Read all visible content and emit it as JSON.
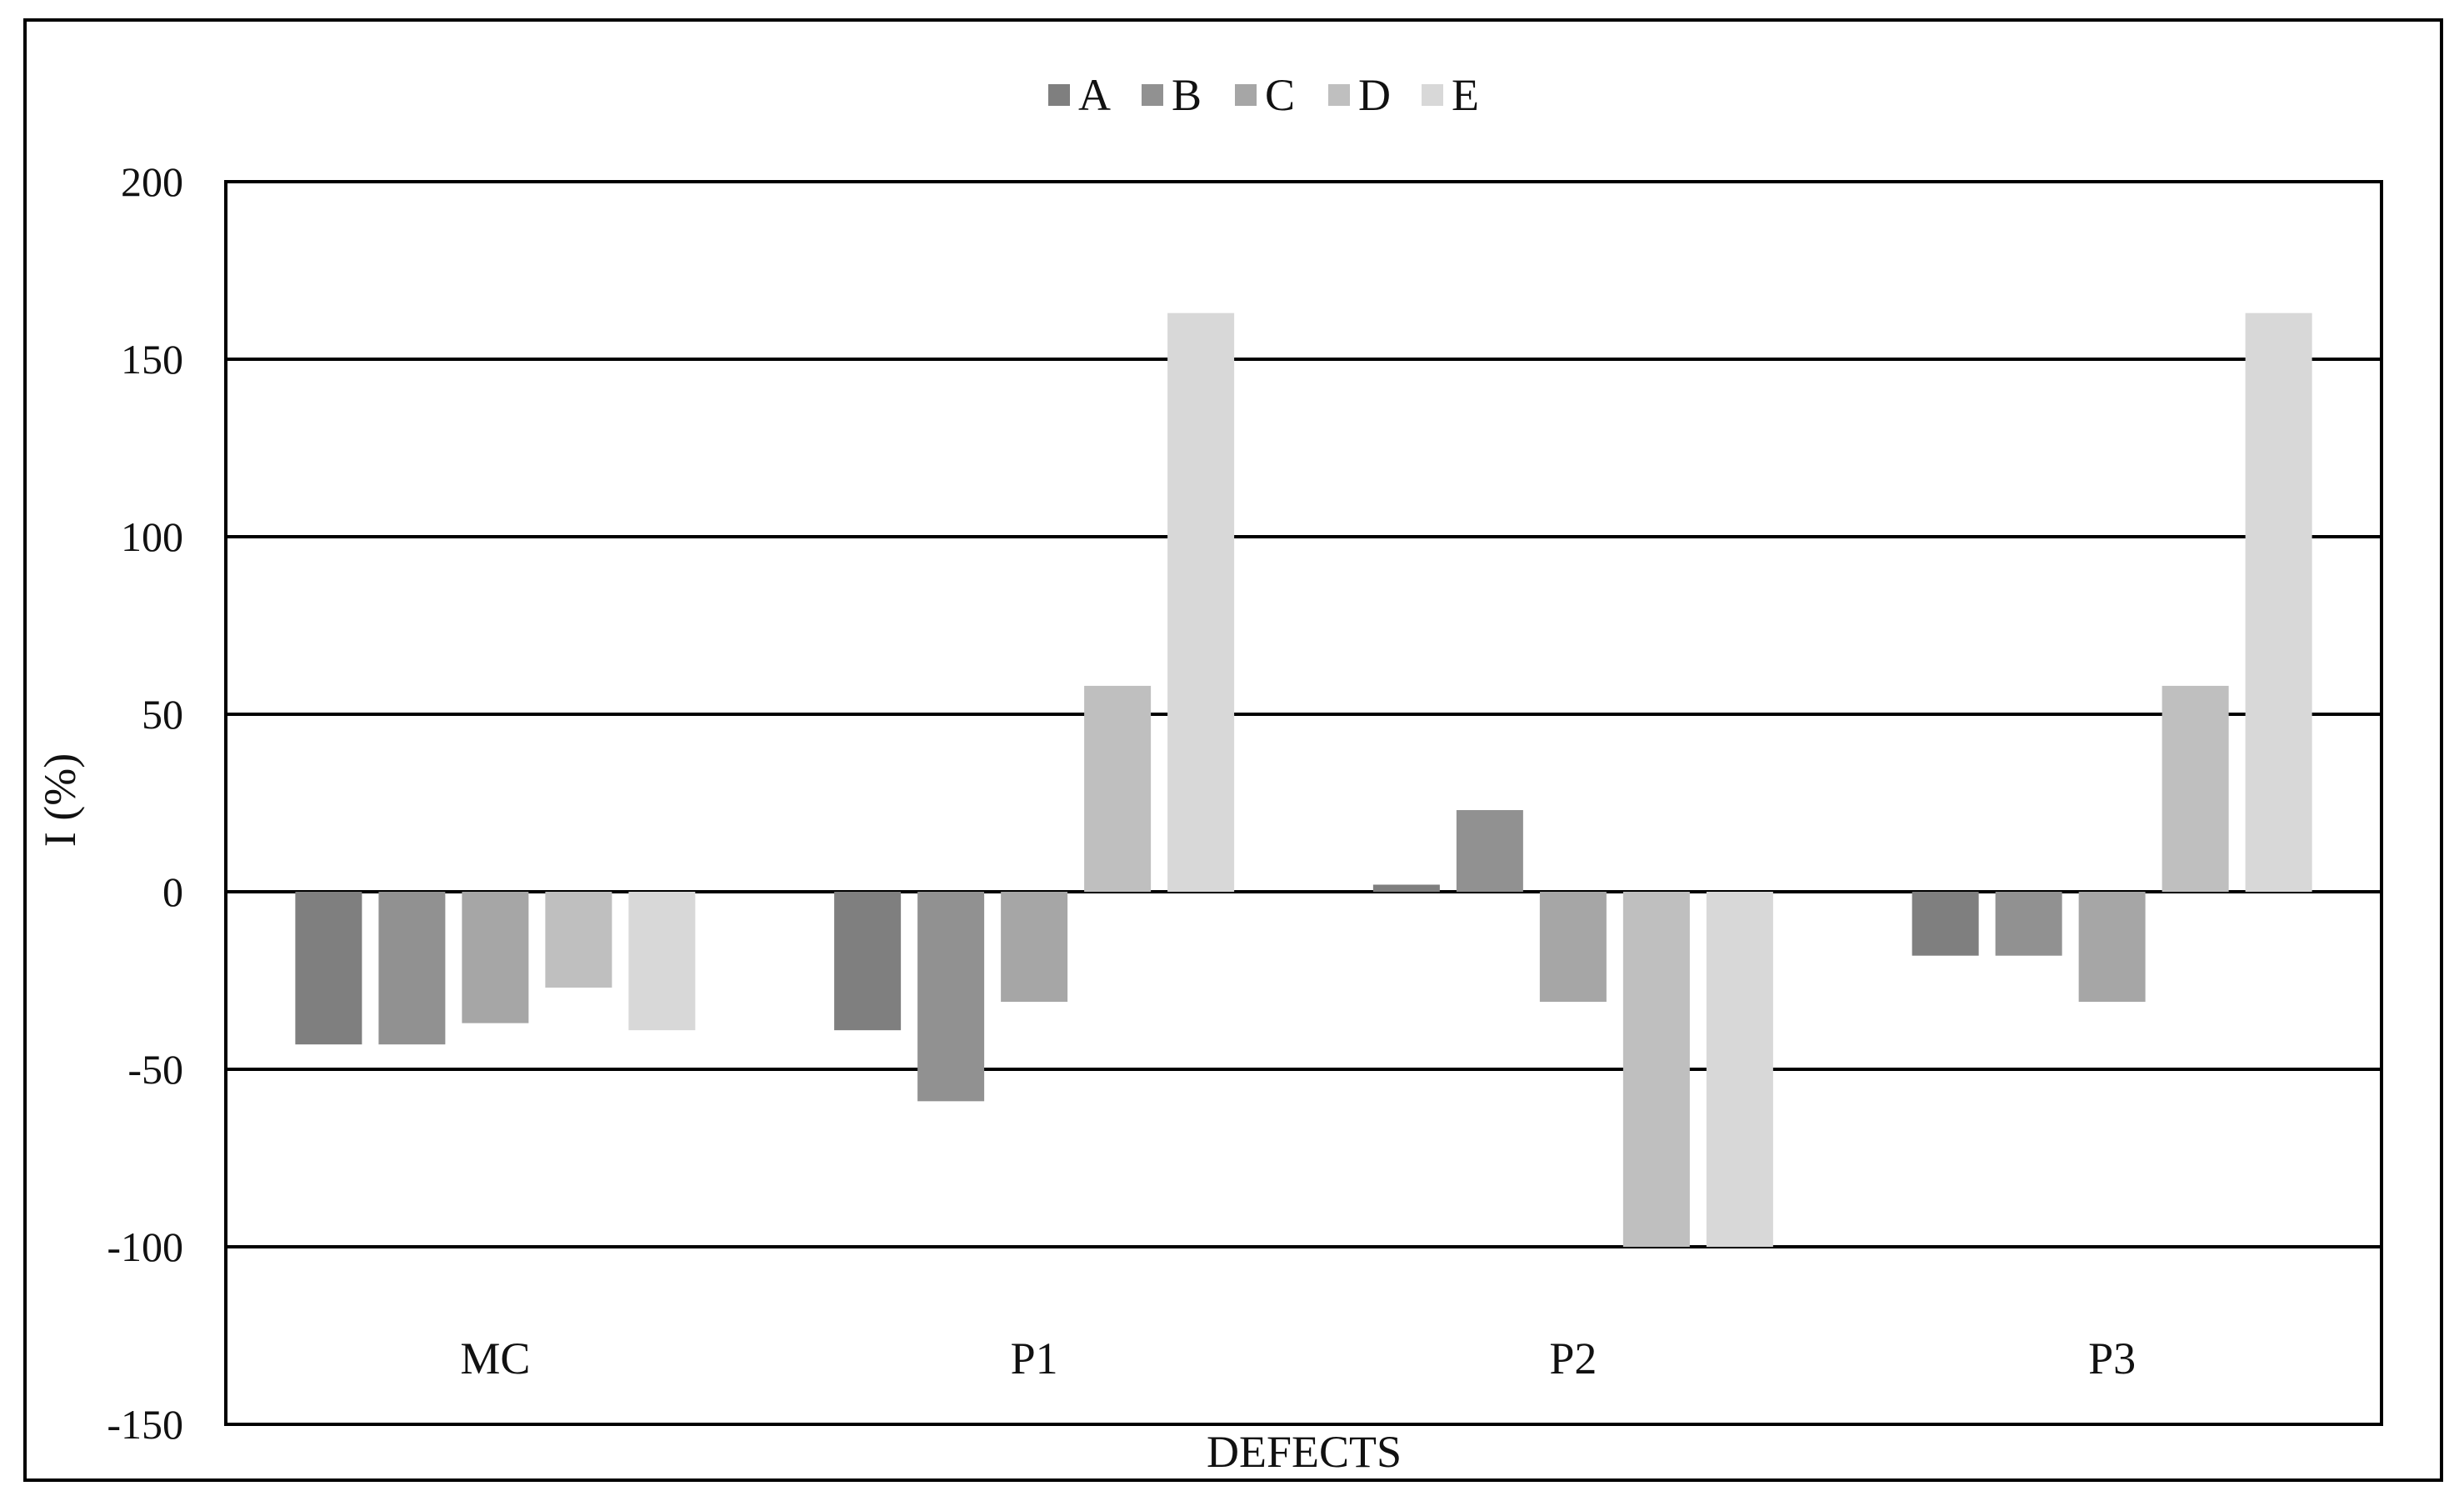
{
  "chart_data": {
    "type": "bar",
    "title": "",
    "xlabel": "DEFECTS",
    "ylabel": "I (%)",
    "ylim": [
      -150,
      200
    ],
    "yticks": [
      200,
      150,
      100,
      50,
      0,
      -50,
      -100,
      -150
    ],
    "grid": true,
    "legend_position": "top-center",
    "categories": [
      "MC",
      "P1",
      "P2",
      "P3"
    ],
    "series": [
      {
        "name": "A",
        "color": "#7f7f7f",
        "values": [
          -43,
          -39,
          2,
          -18
        ]
      },
      {
        "name": "B",
        "color": "#919191",
        "values": [
          -43,
          -59,
          23,
          -18
        ]
      },
      {
        "name": "C",
        "color": "#a6a6a6",
        "values": [
          -37,
          -31,
          -31,
          -31
        ]
      },
      {
        "name": "D",
        "color": "#bfbfbf",
        "values": [
          -27,
          58,
          -100,
          58
        ]
      },
      {
        "name": "E",
        "color": "#d8d8d8",
        "values": [
          -39,
          163,
          -100,
          163
        ]
      }
    ]
  }
}
